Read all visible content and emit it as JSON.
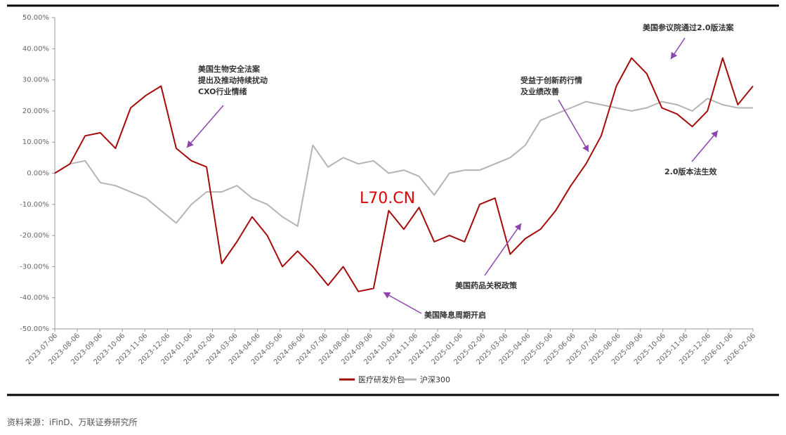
{
  "chart_data": {
    "type": "line",
    "y_ticks": [
      "50.00%",
      "40.00%",
      "30.00%",
      "20.00%",
      "10.00%",
      "0.00%",
      "-10.00%",
      "-20.00%",
      "-30.00%",
      "-40.00%",
      "-50.00%"
    ],
    "ylim": [
      -50,
      50
    ],
    "x_ticks": [
      "2023-07-06",
      "2023-08-06",
      "2023-09-06",
      "2023-10-06",
      "2023-11-06",
      "2023-12-06",
      "2024-01-06",
      "2024-02-06",
      "2024-03-06",
      "2024-04-06",
      "2024-05-06",
      "2024-06-06",
      "2024-07-06",
      "2024-08-06",
      "2024-09-06",
      "2024-10-06",
      "2024-11-06",
      "2024-12-06",
      "2025-01-06",
      "2025-02-06",
      "2025-03-06",
      "2025-04-06",
      "2025-05-06",
      "2025-06-06",
      "2025-07-06",
      "2025-08-06",
      "2025-09-06",
      "2025-10-06",
      "2025-11-06",
      "2025-12-06",
      "2026-01-06",
      "2026-02-06"
    ],
    "grid": false,
    "legend_position": "bottom",
    "series": [
      {
        "name": "医疗研发外包",
        "color": "#a50a0a",
        "values": [
          0,
          3,
          12,
          13,
          8,
          21,
          25,
          28,
          8,
          4,
          2,
          -29,
          -22,
          -14,
          -20,
          -30,
          -25,
          -30,
          -36,
          -30,
          -38,
          -37,
          -12,
          -18,
          -11,
          -22,
          -20,
          -22,
          -10,
          -8,
          -26,
          -21,
          -18,
          -12,
          -4,
          3,
          12,
          28,
          37,
          32,
          21,
          19,
          15,
          20,
          37,
          22,
          28
        ]
      },
      {
        "name": "沪深300",
        "color": "#b4b4b4",
        "values": [
          0,
          3,
          4,
          -3,
          -4,
          -6,
          -8,
          -12,
          -16,
          -10,
          -6,
          -6,
          -4,
          -8,
          -10,
          -14,
          -17,
          9,
          2,
          5,
          3,
          4,
          0,
          1,
          -1,
          -7,
          0,
          1,
          1,
          3,
          5,
          9,
          17,
          19,
          21,
          23,
          22,
          21,
          20,
          21,
          23,
          22,
          20,
          24,
          22,
          21,
          21
        ]
      }
    ],
    "annotations": [
      {
        "lines": [
          "美国生物安全法案",
          "提出及推动持续扰动",
          "CXO行业情绪"
        ]
      },
      {
        "lines": [
          "美国降息周期开启"
        ]
      },
      {
        "lines": [
          "美国药品关税政策"
        ]
      },
      {
        "lines": [
          "受益于创新药行情",
          "及业绩改善"
        ]
      },
      {
        "lines": [
          "美国参议院通过2.0版法案"
        ]
      },
      {
        "lines": [
          "2.0版本法生效"
        ]
      }
    ],
    "watermark": "L70.CN"
  },
  "source_note": "资料来源：iFinD、万联证券研究所"
}
